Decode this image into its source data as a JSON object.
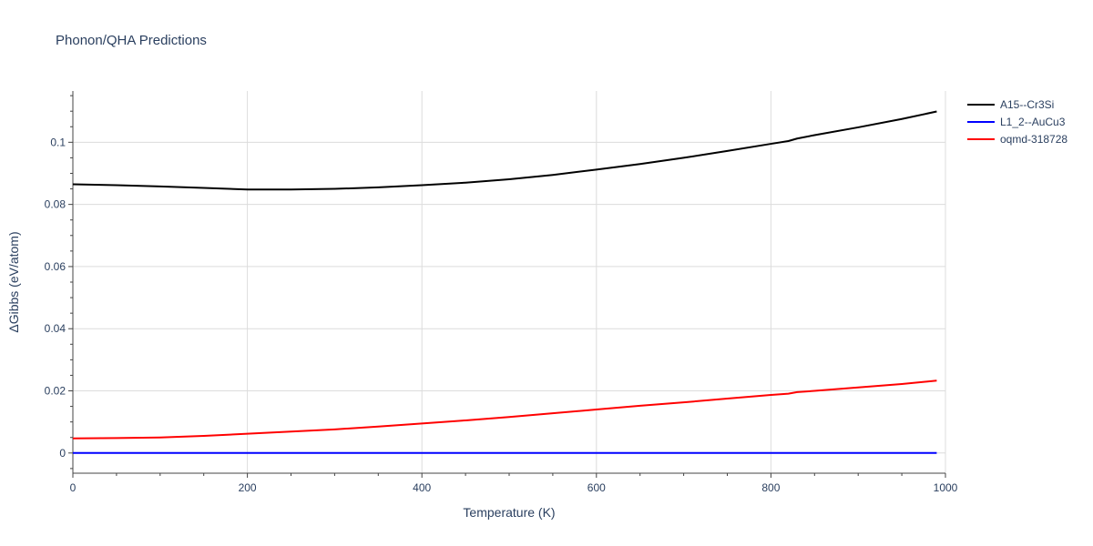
{
  "chart_data": {
    "type": "line",
    "title": "Phonon/QHA Predictions",
    "xlabel": "Temperature (K)",
    "ylabel": "ΔGibbs (eV/atom)",
    "xlim": [
      0,
      1000
    ],
    "ylim": [
      -0.0065,
      0.1165
    ],
    "x_ticks": [
      0,
      200,
      400,
      600,
      800,
      1000
    ],
    "x_tick_labels": [
      "0",
      "200",
      "400",
      "600",
      "800",
      "1000"
    ],
    "y_ticks": [
      0,
      0.02,
      0.04,
      0.06,
      0.08,
      0.1
    ],
    "y_tick_labels": [
      "0",
      "0.02",
      "0.04",
      "0.06",
      "0.08",
      "0.1"
    ],
    "grid": true,
    "legend_position": "top-right, outside plot area",
    "series": [
      {
        "name": "A15--Cr3Si",
        "color": "#000000",
        "x": [
          0,
          50,
          100,
          150,
          200,
          210,
          250,
          300,
          350,
          400,
          450,
          500,
          550,
          600,
          650,
          700,
          750,
          800,
          820,
          830,
          850,
          900,
          950,
          990
        ],
        "y": [
          0.0865,
          0.0862,
          0.0858,
          0.0853,
          0.0848,
          0.0848,
          0.0848,
          0.085,
          0.0855,
          0.0862,
          0.087,
          0.0881,
          0.0895,
          0.0912,
          0.093,
          0.095,
          0.0972,
          0.0995,
          0.1004,
          0.1012,
          0.1023,
          0.1048,
          0.1075,
          0.1099
        ]
      },
      {
        "name": "L1_2--AuCu3",
        "color": "#0000ff",
        "x": [
          0,
          990
        ],
        "y": [
          0,
          0
        ]
      },
      {
        "name": "oqmd-318728",
        "color": "#ff0000",
        "x": [
          0,
          50,
          100,
          150,
          200,
          250,
          300,
          350,
          400,
          450,
          500,
          550,
          600,
          650,
          700,
          750,
          800,
          820,
          830,
          850,
          900,
          950,
          990
        ],
        "y": [
          0.0047,
          0.0048,
          0.005,
          0.0055,
          0.0062,
          0.0069,
          0.0076,
          0.0085,
          0.0095,
          0.0105,
          0.0116,
          0.0128,
          0.014,
          0.0152,
          0.0163,
          0.0175,
          0.0187,
          0.0191,
          0.0196,
          0.02,
          0.0211,
          0.0222,
          0.0233
        ]
      }
    ]
  }
}
